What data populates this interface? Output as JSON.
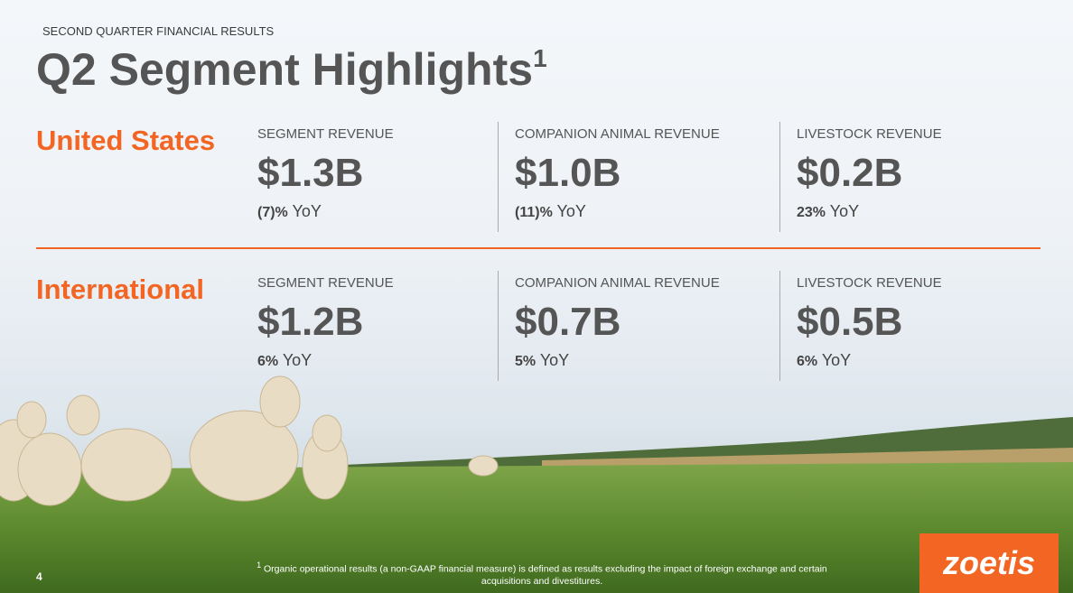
{
  "header": {
    "kicker": "SECOND QUARTER FINANCIAL RESULTS",
    "title": "Q2 Segment Highlights",
    "title_footnote_marker": "1"
  },
  "segments": [
    {
      "name": "United States",
      "metrics": [
        {
          "label": "SEGMENT REVENUE",
          "value": "$1.3B",
          "yoy_change": "(7)%",
          "yoy_label": "YoY"
        },
        {
          "label": "COMPANION ANIMAL REVENUE",
          "value": "$1.0B",
          "yoy_change": "(11)%",
          "yoy_label": "YoY"
        },
        {
          "label": "LIVESTOCK REVENUE",
          "value": "$0.2B",
          "yoy_change": "23%",
          "yoy_label": "YoY"
        }
      ]
    },
    {
      "name": "International",
      "metrics": [
        {
          "label": "SEGMENT REVENUE",
          "value": "$1.2B",
          "yoy_change": "6%",
          "yoy_label": "YoY"
        },
        {
          "label": "COMPANION ANIMAL REVENUE",
          "value": "$0.7B",
          "yoy_change": "5%",
          "yoy_label": "YoY"
        },
        {
          "label": "LIVESTOCK REVENUE",
          "value": "$0.5B",
          "yoy_change": "6%",
          "yoy_label": "YoY"
        }
      ]
    }
  ],
  "footer": {
    "page_number": "4",
    "footnote_marker": "1",
    "footnote": "Organic operational results (a non-GAAP financial measure) is defined as results excluding the impact of foreign exchange and certain acquisitions and divestitures.",
    "logo": "zoetis"
  }
}
